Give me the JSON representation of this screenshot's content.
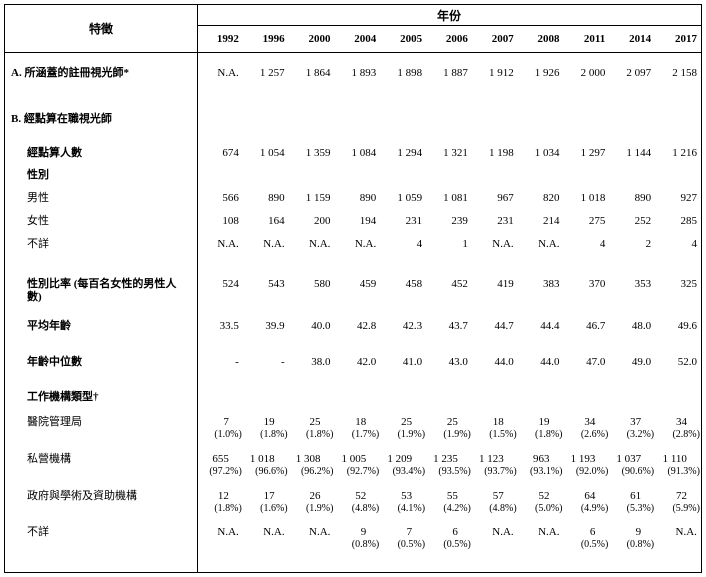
{
  "table": {
    "feature_header": "特徵",
    "year_header": "年份",
    "years": [
      "1992",
      "1996",
      "2000",
      "2004",
      "2005",
      "2006",
      "2007",
      "2008",
      "2011",
      "2014",
      "2017"
    ],
    "rows": [
      {
        "label": "A. 所涵蓋的註冊視光師*",
        "bold": true,
        "indent": 0,
        "cells": [
          "N.A.",
          "1 257",
          "1 864",
          "1 893",
          "1 898",
          "1 887",
          "1 912",
          "1 926",
          "2 000",
          "2 097",
          "2 158"
        ]
      },
      {
        "label": "B. 經點算在職視光師",
        "bold": true,
        "indent": 0,
        "cells": null
      },
      {
        "label": "經點算人數",
        "bold": true,
        "indent": 1,
        "cells": [
          "674",
          "1 054",
          "1 359",
          "1 084",
          "1 294",
          "1 321",
          "1 198",
          "1 034",
          "1 297",
          "1 144",
          "1 216"
        ]
      },
      {
        "label": "性別",
        "bold": true,
        "indent": 1,
        "cells": null
      },
      {
        "label": "男性",
        "bold": false,
        "indent": 1,
        "cells": [
          "566",
          "890",
          "1 159",
          "890",
          "1 059",
          "1 081",
          "967",
          "820",
          "1 018",
          "890",
          "927"
        ]
      },
      {
        "label": "女性",
        "bold": false,
        "indent": 1,
        "cells": [
          "108",
          "164",
          "200",
          "194",
          "231",
          "239",
          "231",
          "214",
          "275",
          "252",
          "285"
        ]
      },
      {
        "label": "不詳",
        "bold": false,
        "indent": 1,
        "cells": [
          "N.A.",
          "N.A.",
          "N.A.",
          "N.A.",
          "4",
          "1",
          "N.A.",
          "N.A.",
          "4",
          "2",
          "4"
        ]
      },
      {
        "label": "性別比率 (每百名女性的男性人數)",
        "bold": true,
        "indent": 1,
        "cells": [
          "524",
          "543",
          "580",
          "459",
          "458",
          "452",
          "419",
          "383",
          "370",
          "353",
          "325"
        ]
      },
      {
        "label": "平均年齡",
        "bold": true,
        "indent": 1,
        "cells": [
          "33.5",
          "39.9",
          "40.0",
          "42.8",
          "42.3",
          "43.7",
          "44.7",
          "44.4",
          "46.7",
          "48.0",
          "49.6"
        ]
      },
      {
        "label": "年齡中位數",
        "bold": true,
        "indent": 1,
        "cells": [
          "-",
          "-",
          "38.0",
          "42.0",
          "41.0",
          "43.0",
          "44.0",
          "44.0",
          "47.0",
          "49.0",
          "52.0"
        ]
      },
      {
        "label": "工作機構類型†",
        "bold": true,
        "indent": 1,
        "cells": null
      },
      {
        "label": "醫院管理局",
        "bold": false,
        "indent": 1,
        "cells": [
          {
            "n": "7",
            "p": "(1.0%)"
          },
          {
            "n": "19",
            "p": "(1.8%)"
          },
          {
            "n": "25",
            "p": "(1.8%)"
          },
          {
            "n": "18",
            "p": "(1.7%)"
          },
          {
            "n": "25",
            "p": "(1.9%)"
          },
          {
            "n": "25",
            "p": "(1.9%)"
          },
          {
            "n": "18",
            "p": "(1.5%)"
          },
          {
            "n": "19",
            "p": "(1.8%)"
          },
          {
            "n": "34",
            "p": "(2.6%)"
          },
          {
            "n": "37",
            "p": "(3.2%)"
          },
          {
            "n": "34",
            "p": "(2.8%)"
          }
        ]
      },
      {
        "label": "私營機構",
        "bold": false,
        "indent": 1,
        "cells": [
          {
            "n": "655",
            "p": "(97.2%)"
          },
          {
            "n": "1 018",
            "p": "(96.6%)"
          },
          {
            "n": "1 308",
            "p": "(96.2%)"
          },
          {
            "n": "1 005",
            "p": "(92.7%)"
          },
          {
            "n": "1 209",
            "p": "(93.4%)"
          },
          {
            "n": "1 235",
            "p": "(93.5%)"
          },
          {
            "n": "1 123",
            "p": "(93.7%)"
          },
          {
            "n": "963",
            "p": "(93.1%)"
          },
          {
            "n": "1 193",
            "p": "(92.0%)"
          },
          {
            "n": "1 037",
            "p": "(90.6%)"
          },
          {
            "n": "1 110",
            "p": "(91.3%)"
          }
        ]
      },
      {
        "label": "政府與學術及資助機構",
        "bold": false,
        "indent": 1,
        "cells": [
          {
            "n": "12",
            "p": "(1.8%)"
          },
          {
            "n": "17",
            "p": "(1.6%)"
          },
          {
            "n": "26",
            "p": "(1.9%)"
          },
          {
            "n": "52",
            "p": "(4.8%)"
          },
          {
            "n": "53",
            "p": "(4.1%)"
          },
          {
            "n": "55",
            "p": "(4.2%)"
          },
          {
            "n": "57",
            "p": "(4.8%)"
          },
          {
            "n": "52",
            "p": "(5.0%)"
          },
          {
            "n": "64",
            "p": "(4.9%)"
          },
          {
            "n": "61",
            "p": "(5.3%)"
          },
          {
            "n": "72",
            "p": "(5.9%)"
          }
        ]
      },
      {
        "label": "不詳",
        "bold": false,
        "indent": 1,
        "cells": [
          "N.A.",
          "N.A.",
          "N.A.",
          {
            "n": "9",
            "p": "(0.8%)"
          },
          {
            "n": "7",
            "p": "(0.5%)"
          },
          {
            "n": "6",
            "p": "(0.5%)"
          },
          "N.A.",
          "N.A.",
          {
            "n": "6",
            "p": "(0.5%)"
          },
          {
            "n": "9",
            "p": "(0.8%)"
          },
          "N.A."
        ]
      }
    ]
  }
}
